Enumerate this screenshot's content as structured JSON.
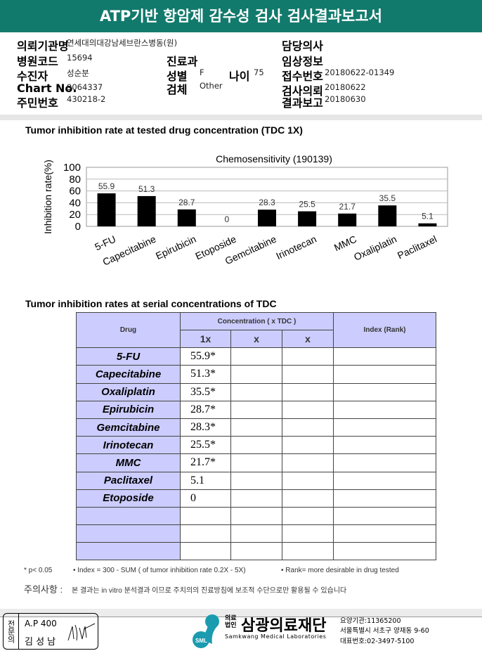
{
  "header": {
    "title": "ATP기반 항암제 감수성 검사 검사결과보고서"
  },
  "info": {
    "institution_label": "의뢰기관명",
    "institution": "연세대의대강남세브란스병동(원)",
    "hospital_code_label": "병원코드",
    "hospital_code": "15694",
    "patient_label": "수진자",
    "patient": "성순분",
    "chart_no_label": "Chart No.",
    "chart_no": "9064337",
    "id_label": "주민번호",
    "id": "430218-2",
    "dept_label": "진료과",
    "sex_label": "성별",
    "sex": "F",
    "age_label": "나이",
    "age": "75",
    "specimen_label": "검체",
    "specimen": "Other",
    "doctor_label": "담당의사",
    "clinical_label": "임상정보",
    "receipt_label": "접수번호",
    "receipt": "20180622-01349",
    "request_label": "검사의뢰",
    "request": "20180622",
    "report_label": "결과보고",
    "report": "20180630"
  },
  "section1_title": "Tumor inhibition rate at tested drug concentration (TDC 1X)",
  "chart_data": {
    "type": "bar",
    "title": "Chemosensitivity (190139)",
    "ylabel": "Inhibition rate(%)",
    "xlabel": "",
    "ylim": [
      0,
      100
    ],
    "yticks": [
      "0",
      "20",
      "40",
      "60",
      "80",
      "100"
    ],
    "grid": true,
    "color": "#000000",
    "categories": [
      "5-FU",
      "Capecitabine",
      "Epirubicin",
      "Etoposide",
      "Gemcitabine",
      "Irinotecan",
      "MMC",
      "Oxaliplatin",
      "Paclitaxel"
    ],
    "values": [
      55.9,
      51.3,
      28.7,
      0,
      28.3,
      25.5,
      21.7,
      35.5,
      5.1
    ],
    "labels": [
      "55.9",
      "51.3",
      "28.7",
      "0",
      "28.3",
      "25.5",
      "21.7",
      "35.5",
      "5.1"
    ]
  },
  "section2_title": "Tumor inhibition rates at serial concentrations of TDC",
  "table": {
    "drug_header": "Drug",
    "conc_header": "Concentration ( x TDC )",
    "index_header": "Index (Rank)",
    "sub_headers": [
      "1x",
      "x",
      "x"
    ],
    "rows": [
      {
        "drug": "5-FU",
        "v": "55.9*"
      },
      {
        "drug": "Capecitabine",
        "v": "51.3*"
      },
      {
        "drug": "Oxaliplatin",
        "v": "35.5*"
      },
      {
        "drug": "Epirubicin",
        "v": "28.7*"
      },
      {
        "drug": "Gemcitabine",
        "v": "28.3*"
      },
      {
        "drug": "Irinotecan",
        "v": "25.5*"
      },
      {
        "drug": "MMC",
        "v": "21.7*"
      },
      {
        "drug": "Paclitaxel",
        "v": "5.1"
      },
      {
        "drug": "Etoposide",
        "v": "0"
      },
      {
        "drug": "",
        "v": ""
      },
      {
        "drug": "",
        "v": ""
      },
      {
        "drug": "",
        "v": ""
      }
    ]
  },
  "notes": {
    "p": "* p< 0.05",
    "index": "• Index = 300 - SUM ( of tumor inhibition rate 0.2X  -  5X)",
    "rank": "• Rank= more desirable in drug tested",
    "caution_label": "주의사항 :",
    "caution": "본 결과는 in vitro 분석결과 이므로 주치의의 진료방침에 보조적 수단으로만 활용될 수 있습니다"
  },
  "footer": {
    "stamp_label": "전문의",
    "ap": "A.P 400",
    "name": "김 성 남",
    "signature": "김성남",
    "org_prefix": "의료법인",
    "org_name": "삼광의료재단",
    "org_en": "Samkwang Medical Laboratories",
    "logo_text": "SML",
    "code": "요양기관:11365200",
    "address": "서울특별시 서초구 양재동 9-60",
    "phone": "대표번호:02-3497-5100",
    "brand_color": "#1a9bb0"
  }
}
